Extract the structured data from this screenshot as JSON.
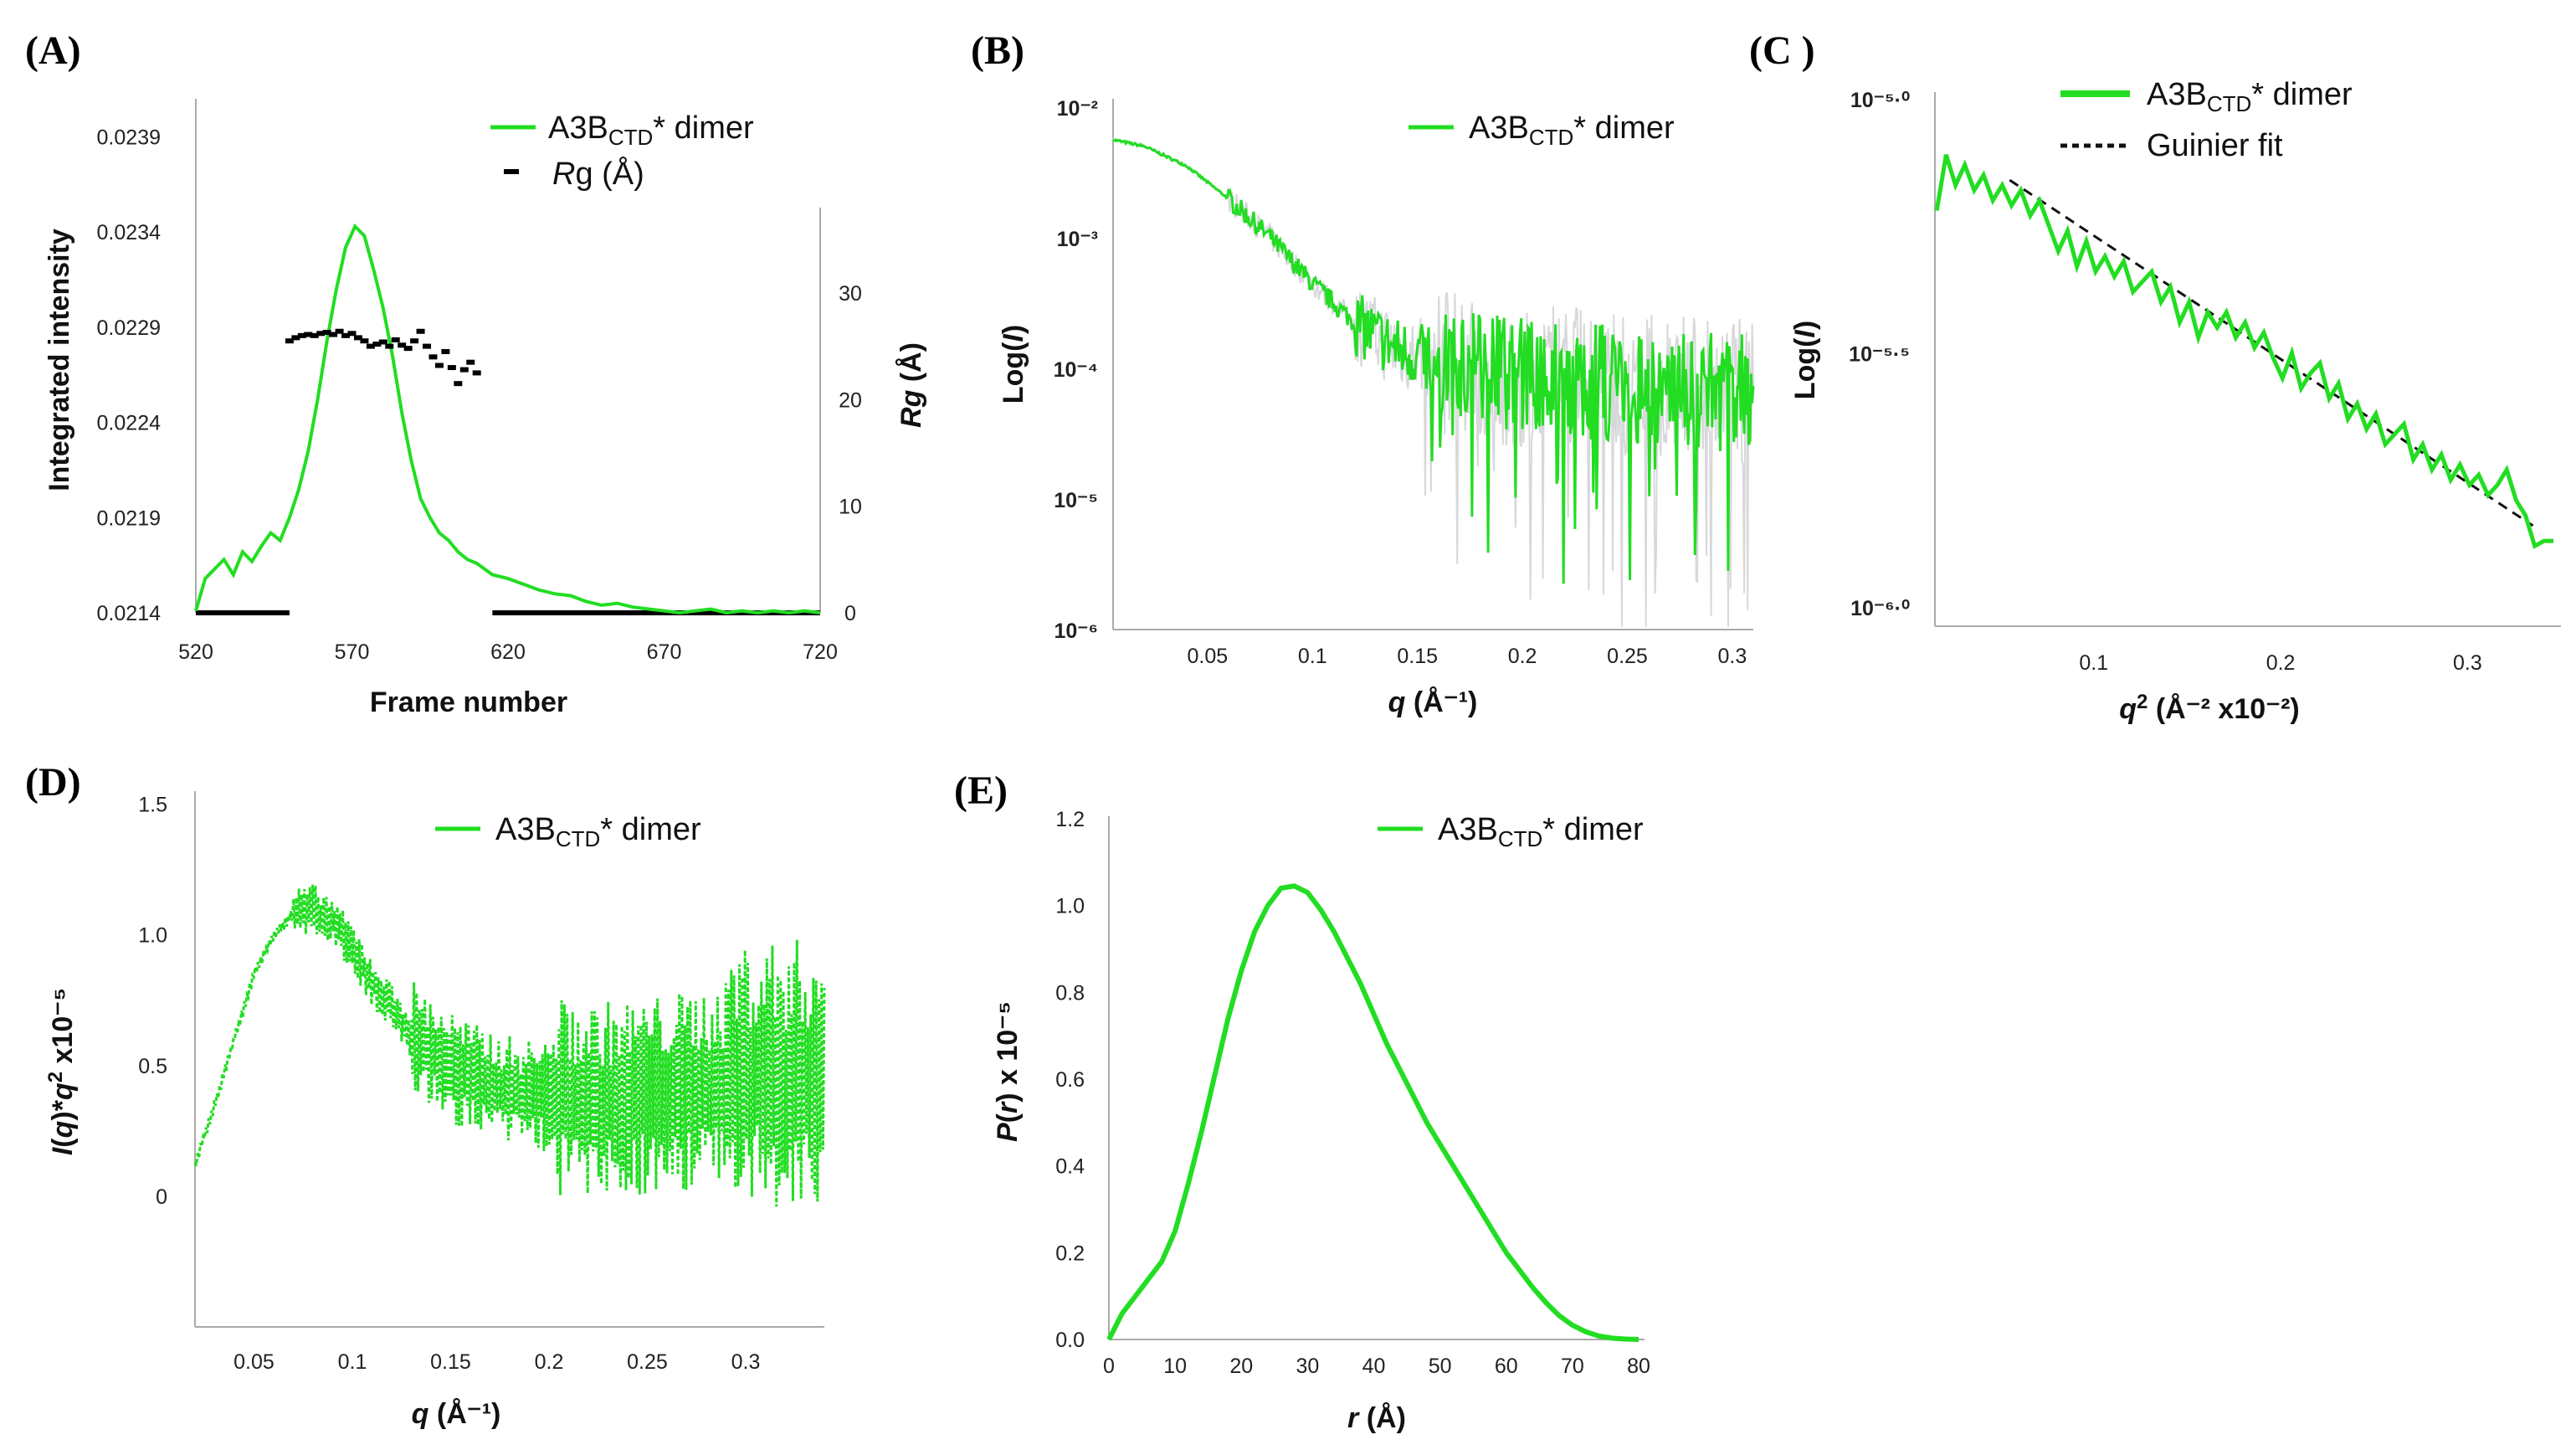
{
  "colors": {
    "green": "#22dd22",
    "gray": "#d8d8dc",
    "black": "#000000",
    "axis": "#999999"
  },
  "chart_data": [
    {
      "id": "A",
      "type": "line",
      "label": "(A)",
      "xlabel": "Frame number",
      "ylabel": "Integrated intensity",
      "ylabel2": "Rg (Å)",
      "ylabel2_italic": "Rg",
      "ylabel2_unit": " (Å)",
      "xlim": [
        520,
        720
      ],
      "ylim": [
        0.0214,
        0.0241
      ],
      "y2lim": [
        0,
        38
      ],
      "xticks": [
        "520",
        "570",
        "620",
        "670",
        "720"
      ],
      "yticks": [
        "0.0214",
        "0.0219",
        "0.0224",
        "0.0229",
        "0.0234",
        "0.0239"
      ],
      "y2ticks": [
        "0",
        "10",
        "20",
        "30"
      ],
      "legend": {
        "series1_main": "A3B",
        "series1_sub": "CTD",
        "series1_tail": "* dimer",
        "series2_italic": "R",
        "series2_tail": "g (Å)"
      },
      "series": [
        {
          "name": "A3BCTD* dimer",
          "x": [
            520,
            523,
            526,
            529,
            532,
            535,
            538,
            541,
            544,
            547,
            550,
            553,
            556,
            559,
            562,
            565,
            568,
            571,
            574,
            577,
            580,
            583,
            586,
            589,
            592,
            595,
            598,
            601,
            604,
            607,
            610,
            615,
            620,
            625,
            630,
            635,
            640,
            645,
            650,
            655,
            660,
            665,
            670,
            675,
            680,
            685,
            690,
            695,
            700,
            705,
            710,
            715,
            720
          ],
          "y": [
            0.02141,
            0.02158,
            0.02163,
            0.02168,
            0.0216,
            0.02172,
            0.02167,
            0.02175,
            0.02182,
            0.02178,
            0.0219,
            0.02205,
            0.02225,
            0.02252,
            0.02283,
            0.0231,
            0.02332,
            0.02343,
            0.02338,
            0.0232,
            0.023,
            0.02275,
            0.02245,
            0.0222,
            0.022,
            0.0219,
            0.02182,
            0.02178,
            0.02172,
            0.02168,
            0.02166,
            0.0216,
            0.02158,
            0.02155,
            0.02152,
            0.0215,
            0.02149,
            0.02146,
            0.02144,
            0.02145,
            0.02143,
            0.02142,
            0.02141,
            0.0214,
            0.02141,
            0.02142,
            0.0214,
            0.02141,
            0.0214,
            0.02141,
            0.0214,
            0.02141,
            0.0214
          ]
        },
        {
          "name": "Rg (Å)",
          "x": [
            550,
            552,
            554,
            556,
            558,
            560,
            562,
            564,
            566,
            568,
            570,
            572,
            574,
            576,
            578,
            580,
            582,
            584,
            586,
            588,
            590,
            592,
            594,
            596,
            598,
            600,
            602,
            604,
            606,
            608,
            610
          ],
          "y": [
            25.5,
            25.8,
            26.0,
            26.1,
            26.0,
            26.2,
            26.3,
            26.1,
            26.4,
            26.0,
            26.2,
            25.8,
            25.5,
            25.0,
            25.2,
            25.4,
            25.0,
            25.6,
            25.1,
            24.8,
            25.5,
            26.4,
            25.0,
            24.0,
            23.2,
            24.5,
            23.0,
            21.5,
            22.8,
            23.5,
            22.5
          ]
        }
      ],
      "buffer_ranges": [
        [
          520,
          550
        ],
        [
          615,
          720
        ]
      ]
    },
    {
      "id": "B",
      "type": "line",
      "label": "(B)",
      "xlabel_italic": "q",
      "xlabel_unit": " (Å⁻¹)",
      "ylabel": "Log(I)",
      "ylabel_pre": "Log(",
      "ylabel_italic": "I",
      "ylabel_post": ")",
      "xlim": [
        0.005,
        0.31
      ],
      "ylim_log10": [
        -6,
        -2
      ],
      "xticks": [
        "0.05",
        "0.1",
        "0.15",
        "0.2",
        "0.25",
        "0.3"
      ],
      "yticks": [
        "10⁻²",
        "10⁻³",
        "10⁻⁴",
        "10⁻⁵",
        "10⁻⁶"
      ],
      "legend": {
        "series1_main": "A3B",
        "series1_sub": "CTD",
        "series1_tail": "* dimer"
      },
      "series": [
        {
          "name": "A3BCTD* dimer",
          "q": [
            0.005,
            0.02,
            0.04,
            0.06,
            0.08,
            0.1,
            0.12,
            0.14,
            0.16,
            0.18,
            0.2,
            0.22,
            0.25,
            0.28,
            0.305
          ],
          "log10I": [
            -2.25,
            -2.3,
            -2.45,
            -2.7,
            -3.0,
            -3.35,
            -3.65,
            -3.85,
            -3.95,
            -4.0,
            -4.05,
            -4.08,
            -4.12,
            -4.15,
            -4.18
          ]
        }
      ]
    },
    {
      "id": "C",
      "type": "line",
      "label": "(C )",
      "xlabel_italic": "q",
      "xlabel_sup": "2",
      "xlabel_unit": " (Å⁻² x10⁻²)",
      "ylabel": "Log(I)",
      "ylabel_pre": "Log(",
      "ylabel_italic": "I",
      "ylabel_post": ")",
      "xlim": [
        0.015,
        0.35
      ],
      "ylim_log10": [
        -6.0,
        -5.0
      ],
      "xticks": [
        "0.1",
        "0.2",
        "0.3"
      ],
      "yticks": [
        "10⁻⁵·⁰",
        "10⁻⁵·⁵",
        "10⁻⁶·⁰"
      ],
      "legend": {
        "series1_main": "A3B",
        "series1_sub": "CTD",
        "series1_tail": "* dimer",
        "series2": "Guinier fit"
      },
      "series": [
        {
          "name": "A3BCTD* dimer",
          "q2": [
            0.016,
            0.021,
            0.026,
            0.031,
            0.036,
            0.041,
            0.046,
            0.051,
            0.056,
            0.061,
            0.066,
            0.071,
            0.076,
            0.081,
            0.086,
            0.091,
            0.096,
            0.101,
            0.106,
            0.111,
            0.116,
            0.121,
            0.126,
            0.131,
            0.136,
            0.141,
            0.146,
            0.151,
            0.156,
            0.161,
            0.166,
            0.171,
            0.176,
            0.181,
            0.186,
            0.191,
            0.196,
            0.201,
            0.206,
            0.211,
            0.216,
            0.221,
            0.226,
            0.231,
            0.236,
            0.241,
            0.246,
            0.251,
            0.256,
            0.261,
            0.266,
            0.271,
            0.276,
            0.281,
            0.286,
            0.291,
            0.296,
            0.301,
            0.306,
            0.311,
            0.316,
            0.321,
            0.326,
            0.331,
            0.336,
            0.341,
            0.346
          ],
          "log10I": [
            -5.22,
            -5.11,
            -5.17,
            -5.13,
            -5.18,
            -5.15,
            -5.2,
            -5.17,
            -5.21,
            -5.18,
            -5.23,
            -5.2,
            -5.25,
            -5.3,
            -5.26,
            -5.33,
            -5.28,
            -5.34,
            -5.31,
            -5.35,
            -5.32,
            -5.38,
            -5.36,
            -5.34,
            -5.4,
            -5.37,
            -5.44,
            -5.4,
            -5.47,
            -5.42,
            -5.45,
            -5.42,
            -5.47,
            -5.44,
            -5.49,
            -5.46,
            -5.51,
            -5.55,
            -5.5,
            -5.57,
            -5.54,
            -5.52,
            -5.59,
            -5.56,
            -5.63,
            -5.6,
            -5.65,
            -5.62,
            -5.68,
            -5.66,
            -5.64,
            -5.71,
            -5.68,
            -5.73,
            -5.7,
            -5.75,
            -5.72,
            -5.76,
            -5.74,
            -5.78,
            -5.76,
            -5.73,
            -5.79,
            -5.82,
            -5.88,
            -5.87,
            -5.87
          ]
        },
        {
          "name": "Guinier fit",
          "q2": [
            0.055,
            0.335
          ],
          "log10I": [
            -5.16,
            -5.84
          ]
        }
      ]
    },
    {
      "id": "D",
      "type": "line",
      "label": "(D)",
      "xlabel_italic": "q",
      "xlabel_unit": " (Å⁻¹)",
      "ylabel": "I(q)*q² x10⁻⁵",
      "ylabel_parts": {
        "i_italic": "I",
        "paren_open": "(",
        "q_italic": "q",
        "paren_close": ")*",
        "q2_italic": "q",
        "sup2": "2",
        "tail": " x10⁻⁵"
      },
      "xlim": [
        0.02,
        0.34
      ],
      "ylim": [
        -0.5,
        1.55
      ],
      "xticks": [
        "0.05",
        "0.1",
        "0.15",
        "0.2",
        "0.25",
        "0.3"
      ],
      "yticks": [
        "0",
        "0.5",
        "1.0",
        "1.5"
      ],
      "legend": {
        "series1_main": "A3B",
        "series1_sub": "CTD",
        "series1_tail": "* dimer"
      },
      "series": [
        {
          "name": "A3BCTD* dimer",
          "q": [
            0.02,
            0.03,
            0.04,
            0.05,
            0.06,
            0.07,
            0.08,
            0.09,
            0.1,
            0.11,
            0.12,
            0.13,
            0.14,
            0.15,
            0.16,
            0.18,
            0.2,
            0.22,
            0.25,
            0.28,
            0.3,
            0.32,
            0.34
          ],
          "y": [
            0.12,
            0.35,
            0.6,
            0.85,
            1.0,
            1.08,
            1.1,
            1.05,
            0.95,
            0.82,
            0.72,
            0.62,
            0.55,
            0.5,
            0.45,
            0.4,
            0.38,
            0.36,
            0.38,
            0.42,
            0.45,
            0.45,
            0.45
          ]
        }
      ]
    },
    {
      "id": "E",
      "type": "line",
      "label": "(E)",
      "xlabel_italic": "r",
      "xlabel_unit": " (Å)",
      "ylabel": "P(r) x 10⁻⁵",
      "ylabel_parts": {
        "p_italic": "P",
        "paren_open": "(",
        "r_italic": "r",
        "tail": ") x 10⁻⁵"
      },
      "xlim": [
        0,
        80
      ],
      "ylim": [
        0,
        1.2
      ],
      "xticks": [
        "0",
        "10",
        "20",
        "30",
        "40",
        "50",
        "60",
        "70",
        "80"
      ],
      "yticks": [
        "0.0",
        "0.2",
        "0.4",
        "0.6",
        "0.8",
        "1.0",
        "1.2"
      ],
      "legend": {
        "series1_main": "A3B",
        "series1_sub": "CTD",
        "series1_tail": "* dimer"
      },
      "series": [
        {
          "name": "A3BCTD* dimer",
          "r": [
            0,
            2,
            4,
            6,
            8,
            10,
            12,
            14,
            16,
            18,
            20,
            22,
            24,
            26,
            28,
            30,
            32,
            34,
            36,
            38,
            40,
            42,
            44,
            46,
            48,
            50,
            52,
            54,
            56,
            58,
            60,
            62,
            64,
            66,
            68,
            70,
            72,
            74,
            76,
            78,
            80
          ],
          "P": [
            0,
            0.06,
            0.1,
            0.14,
            0.18,
            0.25,
            0.36,
            0.48,
            0.61,
            0.74,
            0.85,
            0.94,
            1.0,
            1.04,
            1.045,
            1.03,
            0.99,
            0.94,
            0.88,
            0.82,
            0.75,
            0.68,
            0.62,
            0.56,
            0.5,
            0.45,
            0.4,
            0.35,
            0.3,
            0.25,
            0.2,
            0.16,
            0.12,
            0.085,
            0.055,
            0.033,
            0.018,
            0.008,
            0.003,
            0.001,
            0
          ]
        }
      ]
    }
  ]
}
